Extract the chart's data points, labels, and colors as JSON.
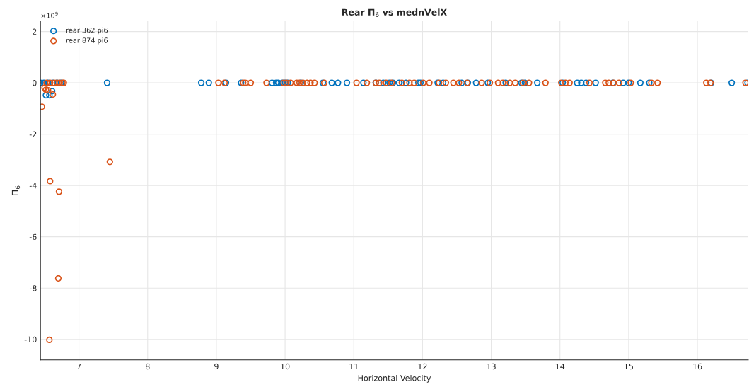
{
  "chart_data": {
    "type": "scatter",
    "title": "Rear Π$_{6}$ vs mednVelX",
    "xlabel": "Horizontal Velocity",
    "ylabel": "Π$_{6}$",
    "annotations": [
      "×10$^{9}$"
    ],
    "xlim": [
      6.44,
      16.74
    ],
    "ylim": [
      -10.8,
      2.4
    ],
    "xticks": [
      7,
      8,
      9,
      10,
      11,
      12,
      13,
      14,
      15,
      16
    ],
    "yticks": [
      -10,
      -8,
      -6,
      -4,
      -2,
      0,
      2
    ],
    "grid": true,
    "legend": "top left",
    "marker": "circle",
    "series": [
      {
        "name": "rear 362 pi6",
        "color": "#0072bd",
        "x": [
          6.44,
          6.49,
          6.55,
          6.62,
          6.68,
          6.74,
          6.52,
          6.57,
          6.61,
          7.41,
          8.78,
          8.89,
          9.14,
          9.36,
          9.81,
          9.87,
          9.9,
          9.96,
          10.0,
          10.04,
          10.23,
          10.55,
          10.68,
          10.77,
          10.9,
          11.14,
          11.32,
          11.43,
          11.52,
          11.57,
          11.66,
          11.76,
          11.94,
          11.97,
          12.22,
          12.3,
          12.57,
          12.66,
          12.78,
          12.95,
          13.21,
          13.44,
          13.49,
          13.67,
          14.04,
          14.25,
          14.31,
          14.38,
          14.52,
          14.77,
          14.92,
          15.0,
          15.17,
          15.3,
          16.2,
          16.5,
          16.73
        ],
        "values": [
          0,
          0,
          0,
          0,
          0,
          0,
          -0.48,
          -0.48,
          -0.32,
          0,
          0,
          0,
          0,
          0,
          0,
          0,
          0,
          0,
          0,
          0,
          0,
          0,
          0,
          0,
          0,
          0,
          0,
          0,
          0,
          0,
          0,
          0,
          0,
          0,
          0,
          0,
          0,
          0,
          0,
          0,
          0,
          0,
          0,
          0,
          0,
          0,
          0,
          0,
          0,
          0,
          0,
          0,
          0,
          0,
          0,
          0,
          0
        ]
      },
      {
        "name": "rear 874 pi6",
        "color": "#d95319",
        "x": [
          6.53,
          6.58,
          6.64,
          6.68,
          6.72,
          6.76,
          6.78,
          6.5,
          6.52,
          6.55,
          6.62,
          6.46,
          6.58,
          7.45,
          6.71,
          6.7,
          6.57,
          9.03,
          9.12,
          9.39,
          9.42,
          9.5,
          9.73,
          9.98,
          10.02,
          10.08,
          10.17,
          10.21,
          10.26,
          10.32,
          10.37,
          10.43,
          10.57,
          11.04,
          11.19,
          11.32,
          11.37,
          11.47,
          11.55,
          11.7,
          11.81,
          11.88,
          12.01,
          12.1,
          12.24,
          12.34,
          12.45,
          12.53,
          12.65,
          12.86,
          12.98,
          13.1,
          13.17,
          13.27,
          13.35,
          13.46,
          13.55,
          13.79,
          14.02,
          14.08,
          14.14,
          14.43,
          14.66,
          14.71,
          14.78,
          14.86,
          15.03,
          15.33,
          15.42,
          16.13,
          16.19,
          16.7
        ],
        "values": [
          0,
          0,
          0,
          0,
          0,
          0,
          0,
          -0.19,
          -0.27,
          -0.29,
          -0.45,
          -0.93,
          -3.83,
          -3.08,
          -4.24,
          -7.62,
          -10.02,
          0,
          0,
          0,
          0,
          0,
          0,
          0,
          0,
          0,
          0,
          0,
          0,
          0,
          0,
          0,
          0,
          0,
          0,
          0,
          0,
          0,
          0,
          0,
          0,
          0,
          0,
          0,
          0,
          0,
          0,
          0,
          0,
          0,
          0,
          0,
          0,
          0,
          0,
          0,
          0,
          0,
          0,
          0,
          0,
          0,
          0,
          0,
          0,
          0,
          0,
          0,
          0,
          0,
          0,
          0
        ]
      }
    ]
  }
}
